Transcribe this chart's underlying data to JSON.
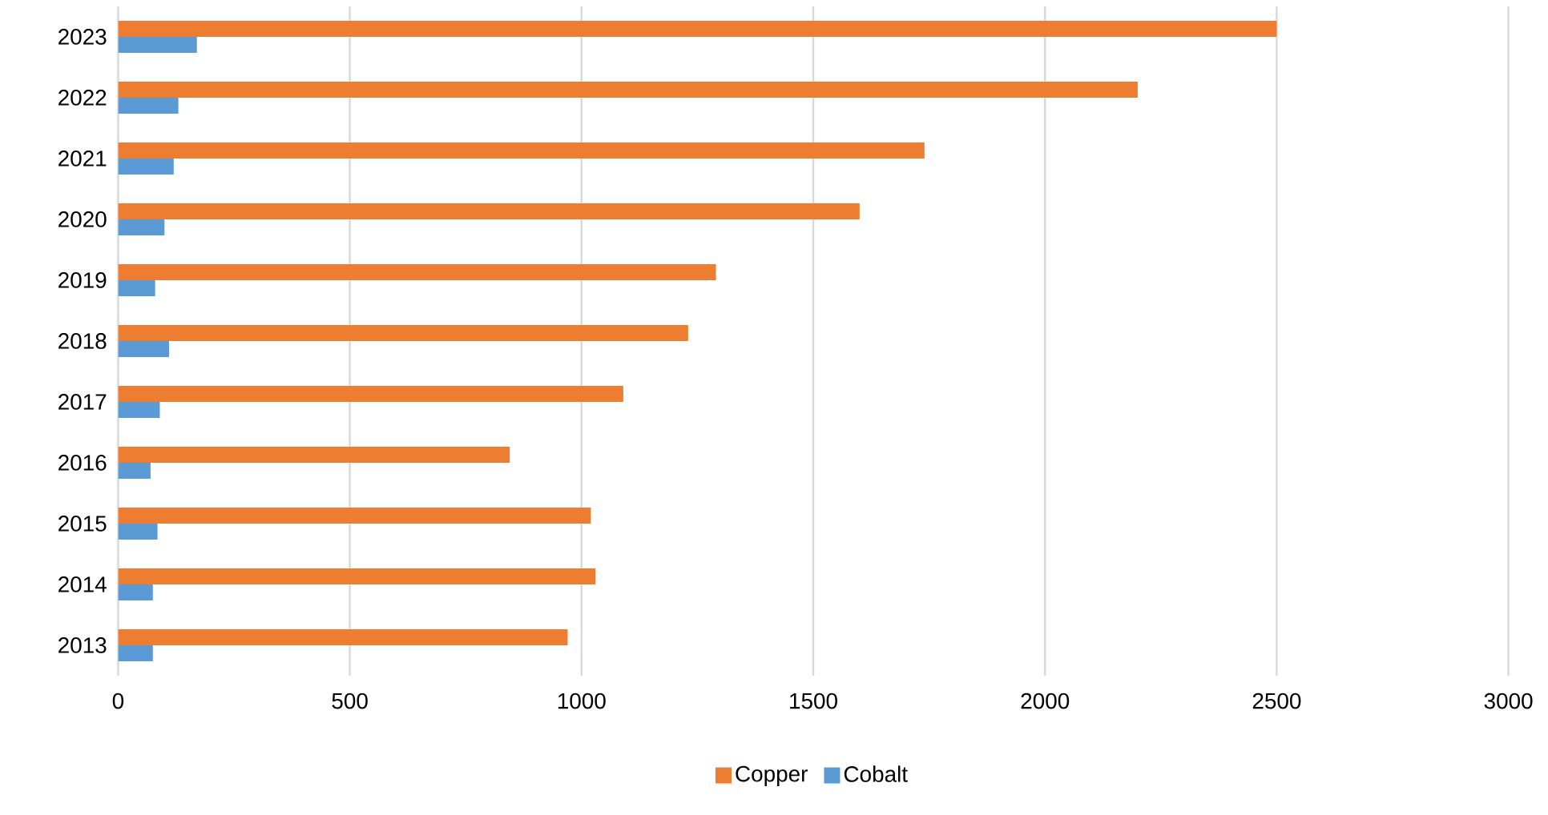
{
  "chart_data": {
    "type": "bar",
    "orientation": "horizontal",
    "categories": [
      "2023",
      "2022",
      "2021",
      "2020",
      "2019",
      "2018",
      "2017",
      "2016",
      "2015",
      "2014",
      "2013"
    ],
    "series": [
      {
        "name": "Copper",
        "color": "#ed7d31",
        "values": [
          2500,
          2200,
          1740,
          1600,
          1290,
          1230,
          1090,
          845,
          1020,
          1030,
          970
        ]
      },
      {
        "name": "Cobalt",
        "color": "#5b9bd5",
        "values": [
          170,
          130,
          120,
          100,
          80,
          110,
          90,
          70,
          85,
          75,
          75
        ]
      }
    ],
    "xlim": [
      0,
      3000
    ],
    "xticks": [
      0,
      500,
      1000,
      1500,
      2000,
      2500,
      3000
    ],
    "grid": "x",
    "legend": "bottom"
  }
}
